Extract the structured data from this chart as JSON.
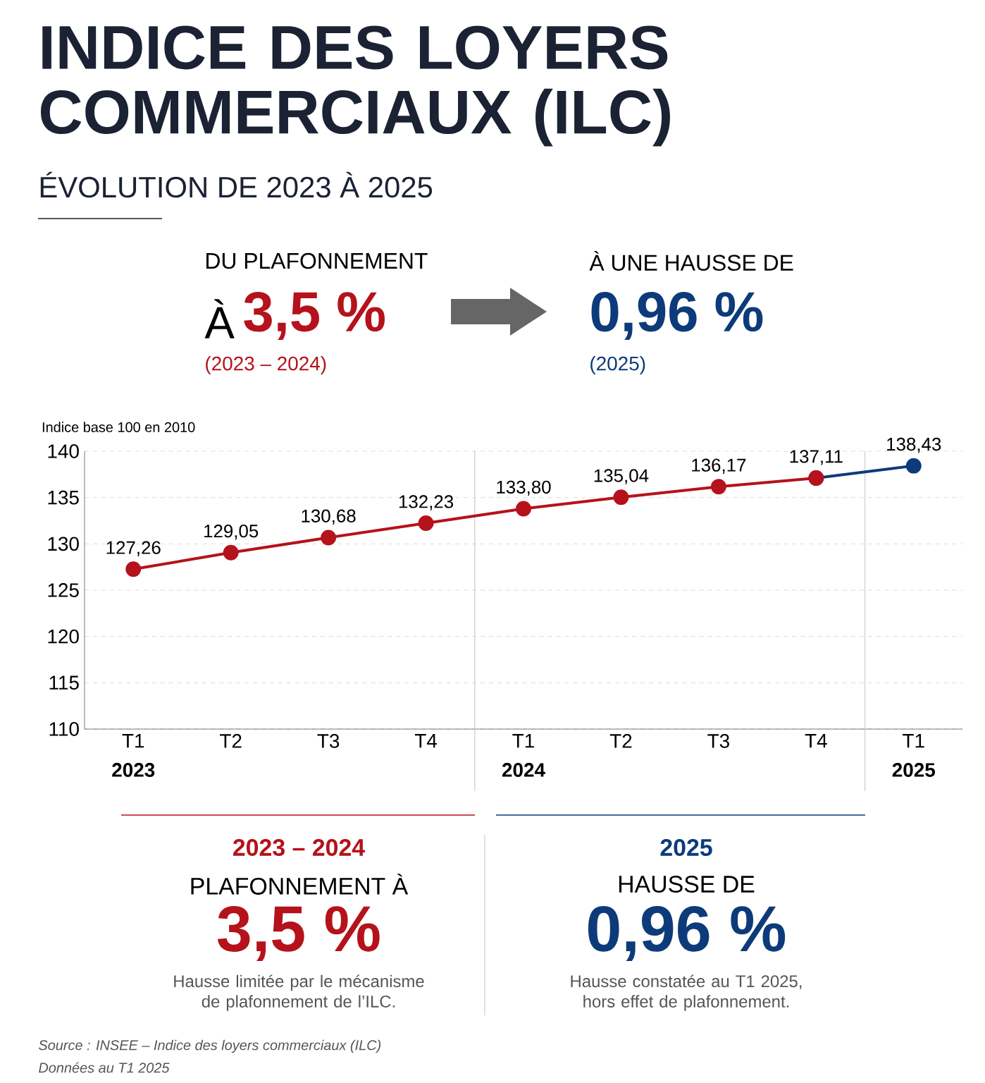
{
  "chart_data": {
    "type": "line",
    "title": "INDICE DES LOYERS COMMERCIAUX (ILC)",
    "subtitle": "ÉVOLUTION DE 2023 À 2025",
    "ylabel": "Indice base 100 en 2010",
    "categories": [
      "T1",
      "T2",
      "T3",
      "T4",
      "T1",
      "T2",
      "T3",
      "T4",
      "T1"
    ],
    "series": [
      {
        "color": "#b5121b",
        "values": [
          127.26,
          129.05,
          130.68,
          132.23,
          133.8,
          135.04,
          136.17,
          137.11,
          null
        ],
        "value_labels": [
          "127,26",
          "129,05",
          "130,68",
          "132,23",
          "133,80",
          "135,04",
          "136,17",
          "137,11",
          null
        ]
      },
      {
        "color": "#0d3b7a",
        "values": [
          null,
          null,
          null,
          null,
          null,
          null,
          null,
          137.11,
          138.43
        ],
        "value_labels": [
          null,
          null,
          null,
          null,
          null,
          null,
          null,
          null,
          "138,43"
        ]
      }
    ],
    "ylim": [
      110,
      140
    ],
    "yticks": [
      110,
      115,
      120,
      125,
      130,
      135,
      140
    ],
    "grid": "y",
    "marker": "circle",
    "line_style": "solid",
    "annotations": [
      "DU PLAFONNEMENT",
      "À",
      "3,5 %",
      "(2023 – 2024)",
      "À UNE HAUSSE DE",
      "0,96 %",
      "(2025)",
      "2023",
      "2024",
      "2025",
      "2023 – 2024",
      "PLAFONNEMENT À",
      "3,5 %",
      "Hausse limitée par le mécanisme de plafonnement de l’ILC.",
      "2025",
      "HAUSSE DE",
      "0,96 %",
      "Hausse constatée au T1 2025, hors effet de plafonnement.",
      "Source : INSEE – Indice des loyers commerciaux (ILC)",
      "Données au T1 2025"
    ]
  }
}
